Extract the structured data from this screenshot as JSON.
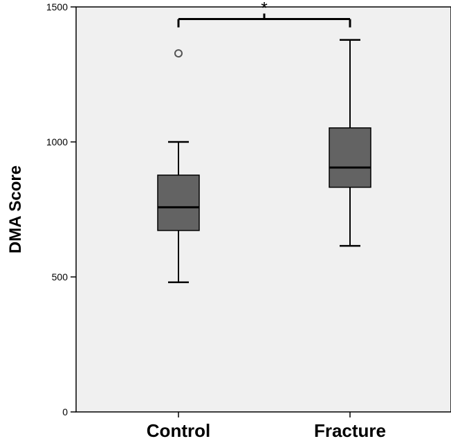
{
  "chart_data": {
    "type": "box",
    "title": "",
    "xlabel": "",
    "ylabel": "DMA Score",
    "ylim": [
      0,
      1500
    ],
    "yticks": [
      0,
      500,
      1000,
      1500
    ],
    "grid": false,
    "categories": [
      "Control",
      "Fracture"
    ],
    "boxes": [
      {
        "category": "Control",
        "whisker_low": 480,
        "q1": 672,
        "median": 758,
        "q3": 877,
        "whisker_high": 1000,
        "outliers": [
          1328
        ]
      },
      {
        "category": "Fracture",
        "whisker_low": 615,
        "q1": 832,
        "median": 905,
        "q3": 1052,
        "whisker_high": 1378,
        "outliers": []
      }
    ],
    "significance": {
      "between": [
        "Control",
        "Fracture"
      ],
      "label": "*",
      "y": 1455
    },
    "colors": {
      "plot_bg": "#f0f0f0",
      "box_fill": "#636363",
      "stroke": "#000000",
      "outlier_stroke": "#555555"
    }
  }
}
